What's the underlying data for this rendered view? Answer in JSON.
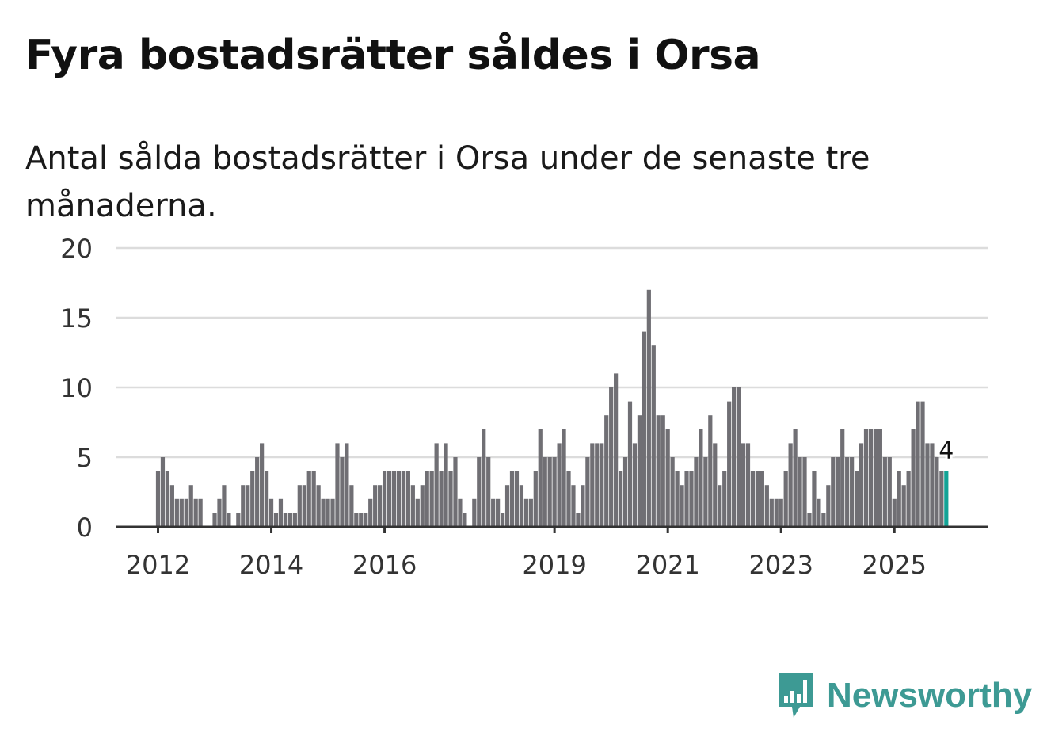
{
  "title": "Fyra bostadsrätter såldes i Orsa",
  "subtitle": "Antal sålda bostadsrätter i Orsa under de senaste tre månaderna.",
  "brand": "Newsworthy",
  "colors": {
    "bar": "#706f74",
    "highlight": "#13a396",
    "grid": "#dcdcdc",
    "axis": "#333333",
    "brand": "#3d9a94"
  },
  "chart_data": {
    "type": "bar",
    "title": "Fyra bostadsrätter såldes i Orsa",
    "xlabel": "",
    "ylabel": "",
    "ylim": [
      0,
      20
    ],
    "yticks": [
      0,
      5,
      10,
      15,
      20
    ],
    "xticks": [
      {
        "label": "2012",
        "month_index": 0
      },
      {
        "label": "2014",
        "month_index": 24
      },
      {
        "label": "2016",
        "month_index": 48
      },
      {
        "label": "2019",
        "month_index": 84
      },
      {
        "label": "2021",
        "month_index": 108
      },
      {
        "label": "2023",
        "month_index": 132
      },
      {
        "label": "2025",
        "month_index": 156
      }
    ],
    "start": "2012-01",
    "frequency": "monthly",
    "grid": true,
    "values": [
      4,
      5,
      4,
      3,
      2,
      2,
      2,
      3,
      2,
      2,
      0,
      0,
      1,
      2,
      3,
      1,
      0,
      1,
      3,
      3,
      4,
      5,
      6,
      4,
      2,
      1,
      2,
      1,
      1,
      1,
      3,
      3,
      4,
      4,
      3,
      2,
      2,
      2,
      6,
      5,
      6,
      3,
      1,
      1,
      1,
      2,
      3,
      3,
      4,
      4,
      4,
      4,
      4,
      4,
      3,
      2,
      3,
      4,
      4,
      6,
      4,
      6,
      4,
      5,
      2,
      1,
      0,
      2,
      5,
      7,
      5,
      2,
      2,
      1,
      3,
      4,
      4,
      3,
      2,
      2,
      4,
      7,
      5,
      5,
      5,
      6,
      7,
      4,
      3,
      1,
      3,
      5,
      6,
      6,
      6,
      8,
      10,
      11,
      4,
      5,
      9,
      6,
      8,
      14,
      17,
      13,
      8,
      8,
      7,
      5,
      4,
      3,
      4,
      4,
      5,
      7,
      5,
      8,
      6,
      3,
      4,
      9,
      10,
      10,
      6,
      6,
      4,
      4,
      4,
      3,
      2,
      2,
      2,
      4,
      6,
      7,
      5,
      5,
      1,
      4,
      2,
      1,
      3,
      5,
      5,
      7,
      5,
      5,
      4,
      6,
      7,
      7,
      7,
      7,
      5,
      5,
      2,
      4,
      3,
      4,
      7,
      9,
      9,
      6,
      6,
      5,
      4,
      4
    ],
    "annotation": {
      "label": "4",
      "target": "last"
    }
  }
}
